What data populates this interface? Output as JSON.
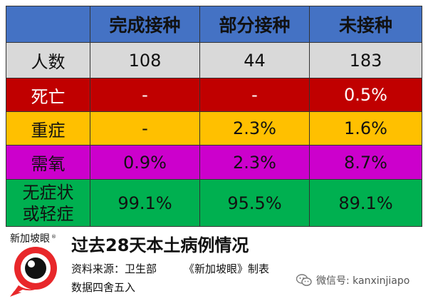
{
  "colors": {
    "header": "#4472C4",
    "count": "#D9D9D9",
    "death": "#C00000",
    "severe": "#FFC000",
    "oxygen": "#CC00CC",
    "mild": "#00B050",
    "logo_red": "#E8272A"
  },
  "table": {
    "columns": [
      "",
      "完成接种",
      "部分接种",
      "未接种"
    ],
    "rows": [
      {
        "label": "人数",
        "values": [
          "108",
          "44",
          "183"
        ]
      },
      {
        "label": "死亡",
        "values": [
          "-",
          "-",
          "0.5%"
        ]
      },
      {
        "label": "重症",
        "values": [
          "-",
          "2.3%",
          "1.6%"
        ]
      },
      {
        "label": "需氧",
        "values": [
          "0.9%",
          "2.3%",
          "8.7%"
        ]
      },
      {
        "label_line1": "无症状",
        "label_line2": "或轻症",
        "values": [
          "99.1%",
          "95.5%",
          "89.1%"
        ]
      }
    ]
  },
  "footer": {
    "logo_text": "新加坡眼",
    "logo_mark": "®",
    "title": "过去28天本土病例情况",
    "source": "资料来源：卫生部",
    "maker": "《新加坡眼》制表",
    "rounding": "数据四舍五入",
    "watermark": "微信号: kanxinjiapo",
    "watermark_icon": "wechat-icon"
  }
}
